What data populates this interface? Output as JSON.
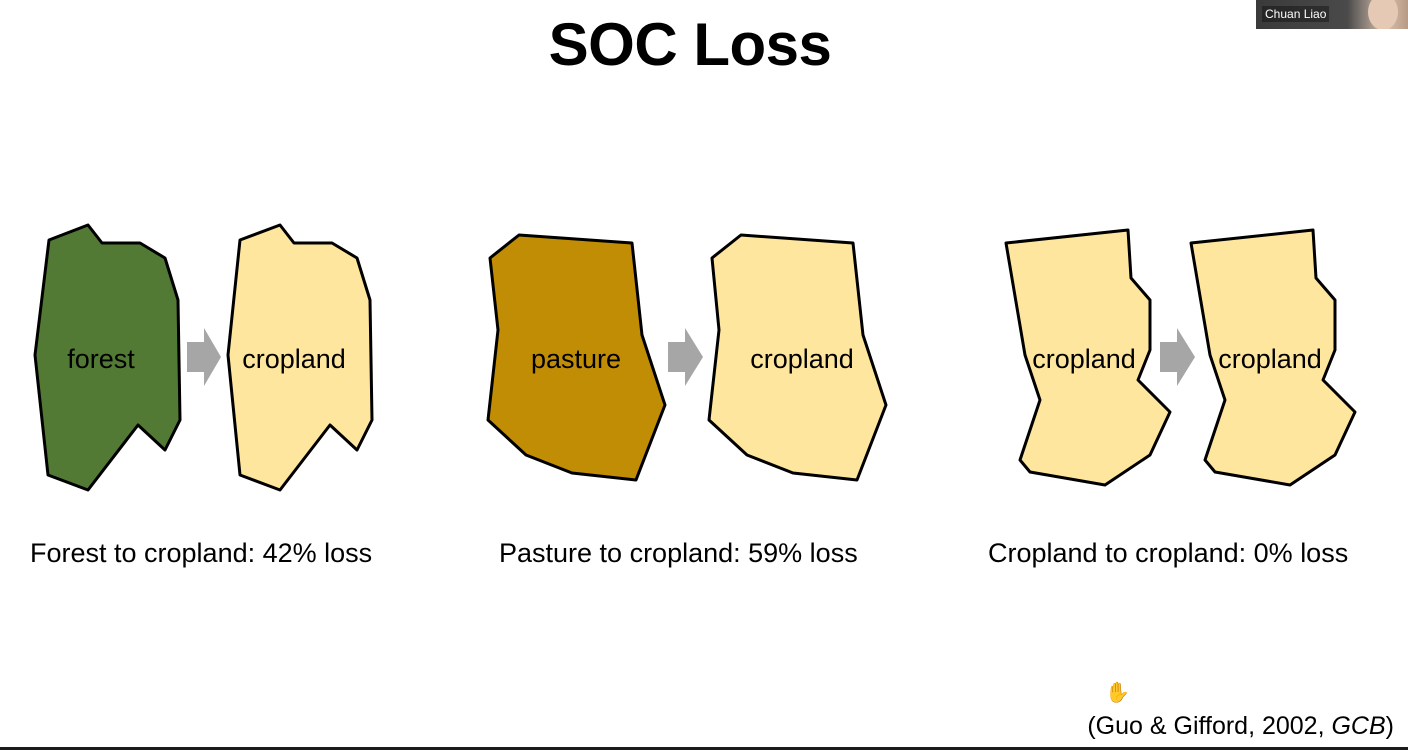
{
  "slide": {
    "title": "SOC Loss",
    "transitions": [
      {
        "from_label": "forest",
        "to_label": "cropland",
        "from_color": "#537a34",
        "to_color": "#ffe69e",
        "caption": "Forest to cropland: 42% loss",
        "loss_percent": 42
      },
      {
        "from_label": "pasture",
        "to_label": "cropland",
        "from_color": "#c18d05",
        "to_color": "#ffe69e",
        "caption": "Pasture to cropland: 59% loss",
        "loss_percent": 59
      },
      {
        "from_label": "cropland",
        "to_label": "cropland",
        "from_color": "#ffe69e",
        "to_color": "#ffe69e",
        "caption": "Cropland to cropland: 0% loss",
        "loss_percent": 0
      }
    ],
    "arrow_color": "#a6a6a6",
    "citation": {
      "prefix": "(Guo & Gifford, 2002, ",
      "journal": "GCB",
      "suffix": ")"
    }
  },
  "video_tile": {
    "participant_name": "Chuan Liao"
  },
  "icons": {
    "cursor": "hand-cursor-icon"
  }
}
